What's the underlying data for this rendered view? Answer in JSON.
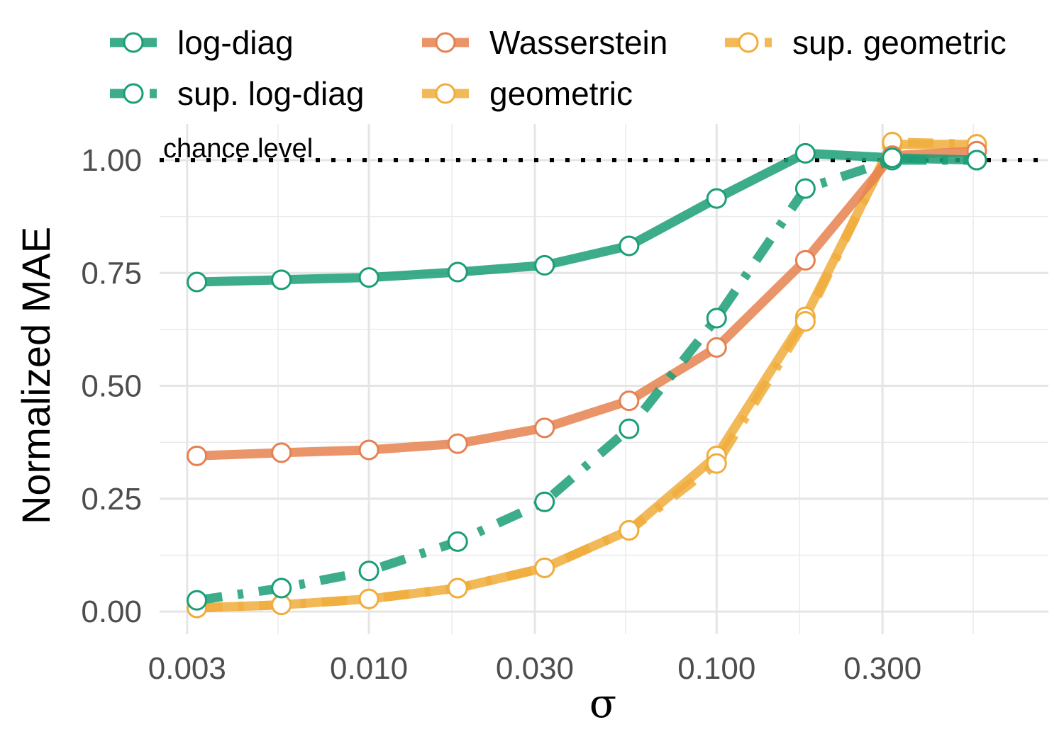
{
  "chart_data": {
    "type": "line",
    "title": "",
    "xlabel": "σ",
    "ylabel": "Normalized MAE",
    "x_scale": "log",
    "x_ticks": [
      0.003,
      0.01,
      0.03,
      0.1,
      0.3
    ],
    "x_tick_labels": [
      "0.003",
      "0.010",
      "0.030",
      "0.100",
      "0.300"
    ],
    "y_ticks": [
      0,
      0.25,
      0.5,
      0.75,
      1.0
    ],
    "y_tick_labels": [
      "0.00",
      "0.25",
      "0.50",
      "0.75",
      "1.00"
    ],
    "xlim": [
      0.0025,
      0.9
    ],
    "ylim": [
      -0.05,
      1.08
    ],
    "grid": true,
    "legend_position": "top",
    "x": [
      0.0032,
      0.0056,
      0.01,
      0.018,
      0.032,
      0.056,
      0.1,
      0.18,
      0.32,
      0.56
    ],
    "series": [
      {
        "name": "log-diag",
        "color": "#1b9e77",
        "linestyle": "solid",
        "values": [
          0.73,
          0.735,
          0.74,
          0.752,
          0.767,
          0.81,
          0.915,
          1.015,
          1.005,
          1.0
        ]
      },
      {
        "name": "sup. log-diag",
        "color": "#1b9e77",
        "linestyle": "dashdot",
        "values": [
          0.025,
          0.052,
          0.09,
          0.155,
          0.243,
          0.405,
          0.65,
          0.937,
          1.0,
          1.0
        ]
      },
      {
        "name": "Wasserstein",
        "color": "#e6814f",
        "linestyle": "solid",
        "values": [
          0.345,
          0.352,
          0.358,
          0.372,
          0.407,
          0.467,
          0.585,
          0.778,
          1.01,
          1.02
        ]
      },
      {
        "name": "geometric",
        "color": "#f0ad3c",
        "linestyle": "solid",
        "values": [
          0.008,
          0.015,
          0.028,
          0.052,
          0.097,
          0.18,
          0.345,
          0.653,
          1.035,
          1.035
        ]
      },
      {
        "name": "sup. geometric",
        "color": "#f0ad3c",
        "linestyle": "dashdot",
        "values": [
          0.008,
          0.015,
          0.028,
          0.052,
          0.097,
          0.18,
          0.328,
          0.643,
          1.04,
          1.035
        ]
      }
    ],
    "reference_line": {
      "y": 1.0,
      "style": "dotted",
      "label": "chance level"
    }
  }
}
